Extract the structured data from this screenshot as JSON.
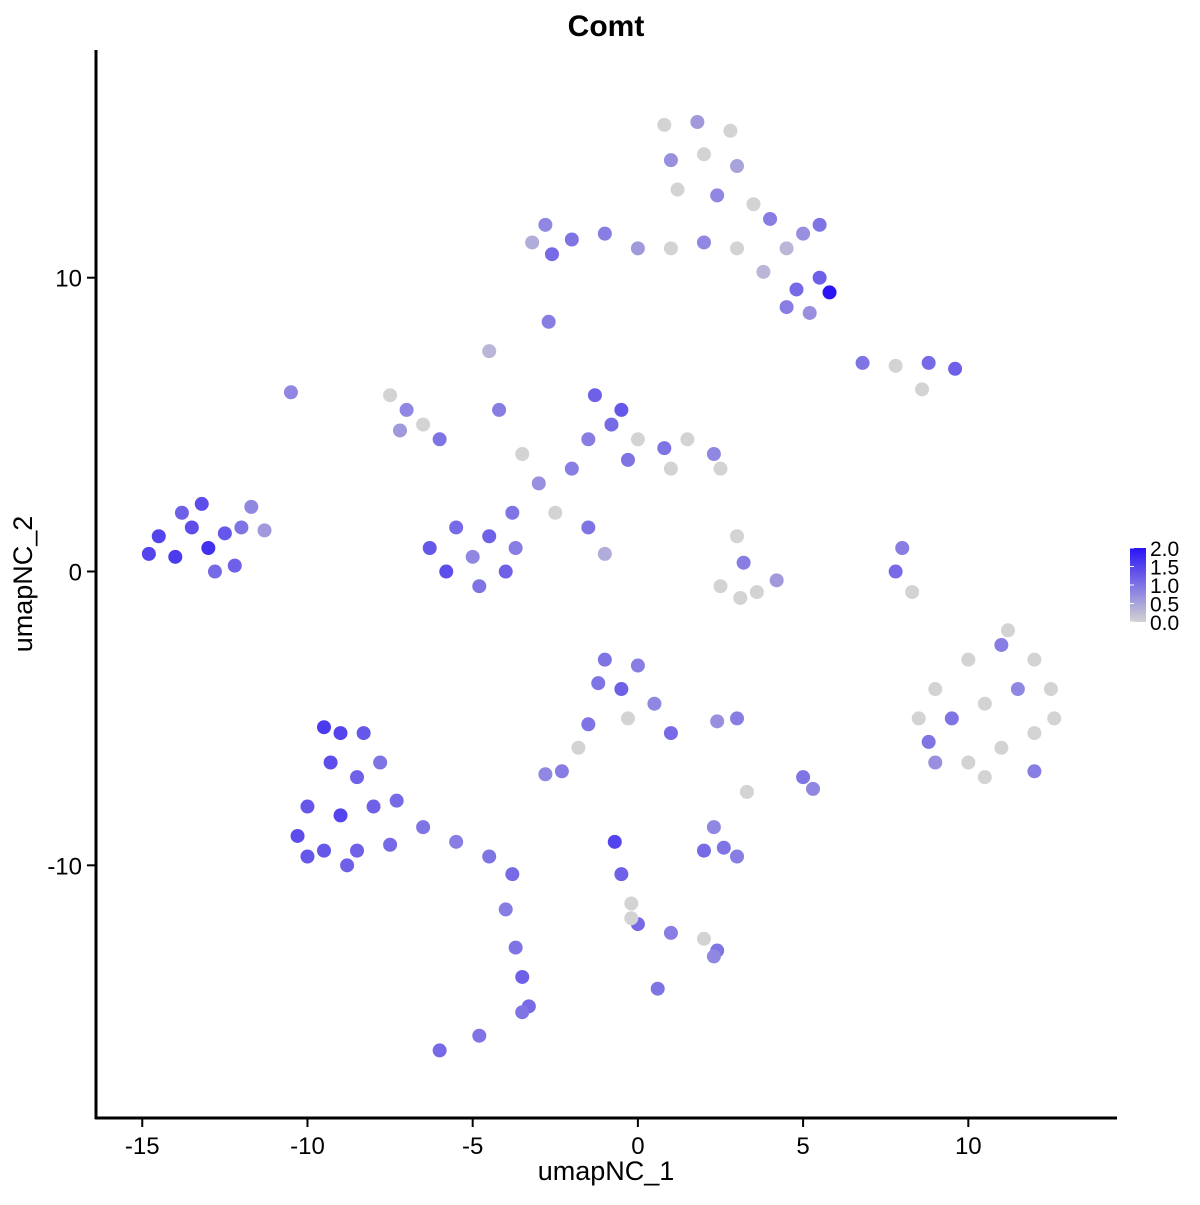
{
  "chart_data": {
    "type": "scatter",
    "title": "Comt",
    "x_label": "umapNC_1",
    "y_label": "umapNC_2",
    "x": [
      -14.5,
      -14,
      -13.5,
      -13,
      -12.5,
      -13.8,
      -12.8,
      -14.8,
      -12,
      -11.7,
      -11.3,
      -13.2,
      -12.2,
      0.8,
      1.8,
      2.8,
      1,
      2,
      3,
      1.2,
      2.4,
      3.5,
      4,
      5,
      5.5,
      4.5,
      3,
      2,
      1,
      0,
      -1,
      -2,
      -2.8,
      -3.2,
      -2.6,
      5.5,
      5.8,
      4.8,
      4.5,
      5.2,
      3.8,
      -2.7,
      6.8,
      7.8,
      8.8,
      9.6,
      8.6,
      -7.5,
      -7,
      -6.5,
      -6,
      -7.2,
      -4.5,
      -4.2,
      -6.3,
      -5.5,
      -4.5,
      -3.7,
      -5.8,
      -4.8,
      -4,
      -5,
      -3.8,
      -3,
      -2,
      -2.5,
      -1.5,
      -1,
      -3.5,
      -1.3,
      -0.8,
      -1.5,
      0,
      0.8,
      1.5,
      2.3,
      1,
      -0.3,
      -0.5,
      2.5,
      3,
      3.2,
      2.5,
      3.6,
      4.2,
      3.1,
      8,
      7.8,
      8.3,
      9,
      10,
      11,
      12,
      12.5,
      9.5,
      10.5,
      11.5,
      12,
      9,
      10,
      11,
      12,
      8.5,
      10.5,
      11.2,
      8.8,
      12.6,
      -1,
      0,
      -0.5,
      0.5,
      1,
      -0.3,
      -1.2,
      -2.3,
      -2.8,
      -1.8,
      -1.5,
      3,
      2.4,
      5,
      5.3,
      3.3,
      2,
      2.6,
      3,
      2.3,
      -9.5,
      -9,
      -8.3,
      -9.3,
      -8.5,
      -7.8,
      -10,
      -9,
      -8,
      -7.3,
      -10.3,
      -9.5,
      -8.5,
      -7.5,
      -6.5,
      -5.5,
      -4.5,
      -3.8,
      -8.8,
      -10,
      -4,
      -3.7,
      -3.5,
      -3.3,
      -3.5,
      -6,
      -4.8,
      -0.7,
      -0.5,
      -0.2,
      0,
      1,
      2,
      2.4,
      2.3,
      0.6,
      -0.2,
      -10.5
    ],
    "y": [
      1.2,
      0.5,
      1.5,
      0.8,
      1.3,
      2,
      0,
      0.6,
      1.5,
      2.2,
      1.4,
      2.3,
      0.2,
      15.2,
      15.3,
      15,
      14,
      14.2,
      13.8,
      13,
      12.8,
      12.5,
      12,
      11.5,
      11.8,
      11,
      11,
      11.2,
      11,
      11,
      11.5,
      11.3,
      11.8,
      11.2,
      10.8,
      10,
      9.5,
      9.6,
      9,
      8.8,
      10.2,
      8.5,
      7.1,
      7,
      7.1,
      6.9,
      6.2,
      6,
      5.5,
      5,
      4.5,
      4.8,
      7.5,
      5.5,
      0.8,
      1.5,
      1.2,
      0.8,
      0,
      -0.5,
      0,
      0.5,
      2,
      3,
      3.5,
      2,
      1.5,
      0.6,
      4,
      6,
      5,
      4.5,
      4.5,
      4.2,
      4.5,
      4,
      3.5,
      3.8,
      5.5,
      3.5,
      1.2,
      0.3,
      -0.5,
      -0.7,
      -0.3,
      -0.9,
      0.8,
      0,
      -0.7,
      -4,
      -3,
      -2.5,
      -3,
      -4,
      -5,
      -4.5,
      -4,
      -5.5,
      -6.5,
      -6.5,
      -6,
      -6.8,
      -5,
      -7,
      -2,
      -5.8,
      -5,
      -3,
      -3.2,
      -4,
      -4.5,
      -5.5,
      -5,
      -3.8,
      -6.8,
      -6.9,
      -6,
      -5.2,
      -5,
      -5.1,
      -7,
      -7.4,
      -7.5,
      -9.5,
      -9.4,
      -9.7,
      -8.7,
      -5.3,
      -5.5,
      -5.5,
      -6.5,
      -7,
      -6.5,
      -8,
      -8.3,
      -8,
      -7.8,
      -9,
      -9.5,
      -9.5,
      -9.3,
      -8.7,
      -9.2,
      -9.7,
      -10.3,
      -10,
      -9.7,
      -11.5,
      -12.8,
      -13.8,
      -14.8,
      -15,
      -16.3,
      -15.8,
      -9.2,
      -10.3,
      -11.3,
      -12,
      -12.3,
      -12.5,
      -12.9,
      -13.1,
      -14.2,
      -11.8,
      6.1
    ],
    "values": [
      1.5,
      1.6,
      1.4,
      1.7,
      1.3,
      1.2,
      1.1,
      1.5,
      1.0,
      0.8,
      0.6,
      1.4,
      1.2,
      0,
      0.6,
      0,
      0.7,
      0,
      0.5,
      0,
      0.8,
      0,
      0.9,
      0.7,
      1.0,
      0.3,
      0,
      0.8,
      0,
      0.6,
      0.9,
      1.0,
      0.8,
      0.4,
      1.1,
      1.2,
      2.0,
      1.1,
      0.9,
      0.7,
      0.3,
      0.9,
      1.0,
      0,
      1.1,
      1.2,
      0,
      0,
      0.8,
      0,
      1.0,
      0.6,
      0.3,
      0.9,
      1.3,
      1.1,
      1.2,
      0.9,
      1.4,
      1.0,
      1.2,
      0.8,
      1.0,
      0.7,
      0.9,
      0,
      1.0,
      0.4,
      0,
      1.2,
      1.1,
      0.9,
      0,
      1.0,
      0,
      0.8,
      0,
      1.0,
      1.3,
      0,
      0,
      0.9,
      0,
      0,
      0.6,
      0,
      0.9,
      1.1,
      0,
      0,
      0,
      0.9,
      0,
      0,
      1.0,
      0,
      0.8,
      0,
      0.7,
      0,
      0,
      0.9,
      0,
      0,
      0,
      1.0,
      0,
      1.0,
      0.9,
      1.2,
      0.8,
      1.1,
      0,
      1.0,
      0.9,
      0.8,
      0,
      1.0,
      0.9,
      0.7,
      1.0,
      0.8,
      0,
      1.1,
      1.0,
      0.9,
      0.8,
      1.6,
      1.5,
      1.3,
      1.4,
      1.2,
      1.0,
      1.3,
      1.5,
      1.2,
      1.1,
      1.4,
      1.3,
      1.2,
      1.1,
      1.0,
      0.9,
      1.0,
      1.1,
      1.2,
      1.3,
      0.9,
      1.0,
      1.2,
      1.1,
      1.0,
      1.1,
      1.0,
      1.5,
      1.2,
      0,
      1.1,
      0.9,
      0,
      1.0,
      0.8,
      1.0,
      0,
      0.8
    ],
    "xlim": [
      -16.4,
      14.5
    ],
    "ylim": [
      -18.6,
      17.75
    ],
    "xticks": [
      -15,
      -10,
      -5,
      0,
      5,
      10
    ],
    "yticks": [
      -10,
      0,
      10
    ],
    "color_low": "#d3d3d3",
    "color_high": "#2a14f5",
    "clim": [
      0,
      2
    ],
    "cticks": [
      {
        "value": 0,
        "label": "0.0"
      },
      {
        "value": 0.5,
        "label": "0.5"
      },
      {
        "value": 1,
        "label": "1.0"
      },
      {
        "value": 1.5,
        "label": "1.5"
      },
      {
        "value": 2,
        "label": "2.0"
      }
    ]
  }
}
